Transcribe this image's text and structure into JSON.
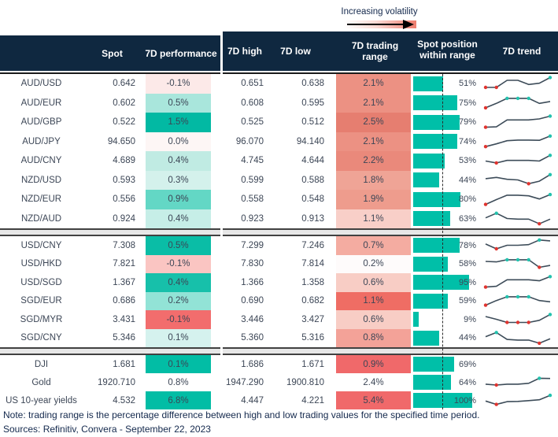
{
  "annotation": {
    "label": "Increasing volatility"
  },
  "header": {
    "spot": "Spot",
    "performance": "7D performance",
    "high": "7D high",
    "low": "7D low",
    "range": "7D trading range",
    "position": "Spot position within range",
    "trend": "7D trend"
  },
  "colors": {
    "header_bg": "#0f2840",
    "bar_teal": "#00bfa8",
    "body_text": "#3c4656",
    "note_text": "#14294d",
    "spark_line": "#3d4c59",
    "marker_low_red": "#e0342f",
    "marker_high_teal": "#23c2ae"
  },
  "chart_data": {
    "type": "table",
    "columns": [
      "",
      "Spot",
      "7D performance",
      "7D high",
      "7D low",
      "7D trading range",
      "Spot position within range",
      "7D trend"
    ],
    "groups": [
      {
        "rows": [
          {
            "label": "AUD/USD",
            "spot": "0.642",
            "perf": "-0.1%",
            "perf_bg": "#fce9e8",
            "high": "0.651",
            "low": "0.638",
            "range": "2.1%",
            "range_bg": "#ec9183",
            "position_pct": 51,
            "position_label": "51%",
            "trend": {
              "y": [
                0.22,
                0.22,
                0.78,
                0.78,
                0.45,
                0.55,
                1.0
              ],
              "red": [
                0,
                1
              ],
              "teal": [
                6
              ]
            }
          },
          {
            "label": "AUD/EUR",
            "spot": "0.602",
            "perf": "0.5%",
            "perf_bg": "#a9e6dc",
            "high": "0.608",
            "low": "0.595",
            "range": "2.1%",
            "range_bg": "#ec9183",
            "position_pct": 75,
            "position_label": "75%",
            "trend": {
              "y": [
                0.1,
                0.45,
                0.85,
                0.85,
                0.85,
                0.45,
                0.6
              ],
              "red": [
                0
              ],
              "teal": [
                2,
                3,
                4
              ]
            }
          },
          {
            "label": "AUD/GBP",
            "spot": "0.522",
            "perf": "1.5%",
            "perf_bg": "#02b9a3",
            "high": "0.525",
            "low": "0.512",
            "range": "2.5%",
            "range_bg": "#e67e70",
            "position_pct": 79,
            "position_label": "79%",
            "trend": {
              "y": [
                0.12,
                0.15,
                0.7,
                0.7,
                0.7,
                0.78,
                1.0
              ],
              "red": [
                0
              ],
              "teal": [
                6
              ]
            }
          },
          {
            "label": "AUD/JPY",
            "spot": "94.650",
            "perf": "0.0%",
            "perf_bg": "#fdf6f5",
            "high": "96.070",
            "low": "94.140",
            "range": "2.1%",
            "range_bg": "#ec9183",
            "position_pct": 74,
            "position_label": "74%",
            "trend": {
              "y": [
                0.08,
                0.3,
                0.55,
                0.6,
                0.6,
                0.58,
                0.92
              ],
              "red": [
                0
              ],
              "teal": [
                6
              ]
            }
          },
          {
            "label": "AUD/CNY",
            "spot": "4.689",
            "perf": "0.4%",
            "perf_bg": "#c0ebe3",
            "high": "4.745",
            "low": "4.644",
            "range": "2.2%",
            "range_bg": "#ea897b",
            "position_pct": 53,
            "position_label": "53%",
            "trend": {
              "y": [
                0.5,
                0.35,
                0.55,
                0.55,
                0.55,
                0.5,
                0.95
              ],
              "red": [
                1
              ],
              "teal": [
                6
              ]
            }
          },
          {
            "label": "NZD/USD",
            "spot": "0.593",
            "perf": "0.3%",
            "perf_bg": "#d4f1ec",
            "high": "0.599",
            "low": "0.588",
            "range": "1.8%",
            "range_bg": "#efa496",
            "position_pct": 44,
            "position_label": "44%",
            "trend": {
              "y": [
                0.6,
                0.7,
                0.55,
                0.5,
                0.2,
                0.4,
                0.92
              ],
              "red": [
                4
              ],
              "teal": [
                6
              ]
            }
          },
          {
            "label": "NZD/EUR",
            "spot": "0.556",
            "perf": "0.9%",
            "perf_bg": "#63d7c5",
            "high": "0.558",
            "low": "0.548",
            "range": "1.9%",
            "range_bg": "#ee9c8d",
            "position_pct": 80,
            "position_label": "80%",
            "trend": {
              "y": [
                0.12,
                0.5,
                0.85,
                0.85,
                0.8,
                0.55,
                0.9
              ],
              "red": [
                0
              ],
              "teal": [
                6
              ]
            }
          },
          {
            "label": "NZD/AUD",
            "spot": "0.924",
            "perf": "0.4%",
            "perf_bg": "#c6eee7",
            "high": "0.923",
            "low": "0.913",
            "range": "1.1%",
            "range_bg": "#f8cfc8",
            "position_pct": 63,
            "position_label": "63%",
            "trend": {
              "y": [
                0.55,
                0.92,
                0.5,
                0.45,
                0.45,
                0.08,
                0.45
              ],
              "red": [
                5
              ],
              "teal": [
                1
              ]
            }
          }
        ]
      },
      {
        "rows": [
          {
            "label": "USD/CNY",
            "spot": "7.308",
            "perf": "0.5%",
            "perf_bg": "#0abda6",
            "high": "7.299",
            "low": "7.246",
            "range": "0.7%",
            "range_bg": "#f4aca1",
            "position_pct": 78,
            "position_label": "78%",
            "trend": {
              "y": [
                0.6,
                0.22,
                0.5,
                0.5,
                0.55,
                0.92,
                0.85
              ],
              "red": [
                1
              ],
              "teal": [
                5
              ]
            }
          },
          {
            "label": "USD/HKD",
            "spot": "7.821",
            "perf": "-0.1%",
            "perf_bg": "#fac5c2",
            "high": "7.830",
            "low": "7.814",
            "range": "0.2%",
            "range_bg": "#fefbfb",
            "position_pct": 58,
            "position_label": "58%",
            "trend": {
              "y": [
                0.72,
                0.68,
                0.85,
                0.85,
                0.85,
                0.25,
                0.4
              ],
              "red": [
                5
              ],
              "teal": [
                2,
                3,
                4
              ]
            }
          },
          {
            "label": "USD/SGD",
            "spot": "1.367",
            "perf": "0.4%",
            "perf_bg": "#17c0aa",
            "high": "1.366",
            "low": "1.358",
            "range": "0.6%",
            "range_bg": "#f8cdc5",
            "position_pct": 95,
            "position_label": "95%",
            "trend": {
              "y": [
                0.12,
                0.18,
                0.7,
                0.7,
                0.7,
                0.62,
                0.95
              ],
              "red": [
                0
              ],
              "teal": [
                6
              ]
            }
          },
          {
            "label": "SGD/EUR",
            "spot": "0.686",
            "perf": "0.2%",
            "perf_bg": "#92e3d6",
            "high": "0.690",
            "low": "0.682",
            "range": "1.1%",
            "range_bg": "#ef6d64",
            "position_pct": 59,
            "position_label": "59%",
            "trend": {
              "y": [
                0.18,
                0.55,
                0.85,
                0.85,
                0.85,
                0.55,
                0.45
              ],
              "red": [
                0
              ],
              "teal": [
                2,
                3,
                4
              ]
            }
          },
          {
            "label": "SGD/MYR",
            "spot": "3.431",
            "perf": "-0.1%",
            "perf_bg": "#f26d6d",
            "high": "3.446",
            "low": "3.427",
            "range": "0.6%",
            "range_bg": "#f8cdc5",
            "position_pct": 9,
            "position_label": "9%",
            "trend": {
              "y": [
                0.72,
                0.5,
                0.25,
                0.25,
                0.25,
                0.42,
                0.88
              ],
              "red": [
                2,
                3,
                4
              ],
              "teal": [
                6
              ]
            }
          },
          {
            "label": "SGD/CNY",
            "spot": "5.346",
            "perf": "0.1%",
            "perf_bg": "#d5f2ee",
            "high": "5.360",
            "low": "5.316",
            "range": "0.8%",
            "range_bg": "#f3a298",
            "position_pct": 44,
            "position_label": "44%",
            "trend": {
              "y": [
                0.62,
                0.95,
                0.4,
                0.35,
                0.35,
                0.1,
                0.45
              ],
              "red": [
                5
              ],
              "teal": [
                1
              ]
            }
          }
        ]
      },
      {
        "rows": [
          {
            "label": "DJI",
            "spot": "1.681",
            "perf": "0.1%",
            "perf_bg": "#02bda5",
            "high": "1.686",
            "low": "1.671",
            "range": "0.9%",
            "range_bg": "#f0696a",
            "position_pct": 69,
            "position_label": "69%",
            "trend": null
          },
          {
            "label": "Gold",
            "spot": "1920.710",
            "perf": "0.8%",
            "perf_bg": "#ffffff",
            "high": "1947.290",
            "low": "1900.810",
            "range": "2.4%",
            "range_bg": "#ffffff",
            "position_pct": 64,
            "position_label": "64%",
            "trend": {
              "y": [
                0.35,
                0.28,
                0.35,
                0.35,
                0.42,
                0.82,
                0.8
              ],
              "red": [
                1
              ],
              "teal": [
                5
              ]
            }
          },
          {
            "label": "US 10-year yields",
            "spot": "4.532",
            "perf": "6.8%",
            "perf_bg": "#02bda5",
            "high": "4.447",
            "low": "4.221",
            "range": "5.4%",
            "range_bg": "#f0696a",
            "position_pct": 100,
            "position_label": "100%",
            "trend": {
              "y": [
                0.45,
                0.18,
                0.4,
                0.42,
                0.48,
                0.55,
                0.9
              ],
              "red": [
                1
              ],
              "teal": [
                6
              ]
            }
          }
        ]
      }
    ]
  },
  "footer": {
    "note": "Note: trading range is the percentage difference between high and low trading values for the specified time period.",
    "sources": "Sources: Refinitiv, Convera - September 22, 2023"
  }
}
